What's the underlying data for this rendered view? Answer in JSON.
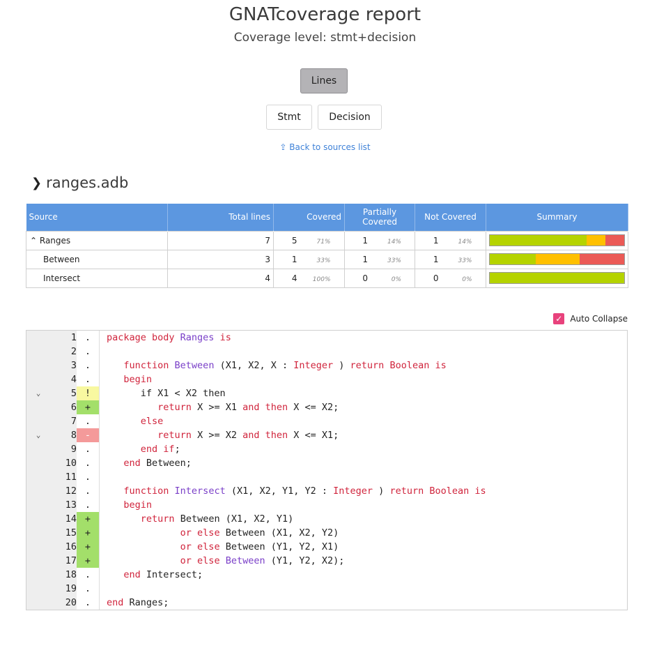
{
  "header": {
    "title": "GNATcoverage report",
    "subtitle": "Coverage level: stmt+decision"
  },
  "view_buttons": {
    "lines": "Lines",
    "stmt": "Stmt",
    "decision": "Decision"
  },
  "back_link": "⇪ Back to sources list",
  "file": {
    "chevron": "❯",
    "name": "ranges.adb"
  },
  "table": {
    "headers": [
      "Source",
      "Total lines",
      "Covered",
      "Partially Covered",
      "Not Covered",
      "Summary"
    ],
    "rows": [
      {
        "source": "⌃ Ranges",
        "total": "7",
        "covered": "5",
        "covered_pct": "71%",
        "partial": "1",
        "partial_pct": "14%",
        "not": "1",
        "not_pct": "14%",
        "summary": [
          0.72,
          0.14,
          0.14
        ]
      },
      {
        "source": "Between",
        "total": "3",
        "covered": "1",
        "covered_pct": "33%",
        "partial": "1",
        "partial_pct": "33%",
        "not": "1",
        "not_pct": "33%",
        "summary": [
          0.34,
          0.33,
          0.33
        ]
      },
      {
        "source": "Intersect",
        "total": "4",
        "covered": "4",
        "covered_pct": "100%",
        "partial": "0",
        "partial_pct": "0%",
        "not": "0",
        "not_pct": "0%",
        "summary": [
          1.0,
          0.0,
          0.0
        ]
      }
    ]
  },
  "auto_collapse": {
    "label": "Auto Collapse",
    "checked": true
  },
  "colors": {
    "covered": "#b5d300",
    "partial": "#ffc000",
    "not_covered": "#eb5a56",
    "header_blue": "#5c97e0",
    "checkbox": "#e8427c"
  },
  "code": {
    "lines": [
      {
        "n": "1",
        "fold": "",
        "mark": ".",
        "state": "none",
        "tokens": [
          [
            "kw",
            "package body "
          ],
          [
            "ty",
            "Ranges"
          ],
          [
            "kw",
            " is"
          ]
        ]
      },
      {
        "n": "2",
        "fold": "",
        "mark": ".",
        "state": "none",
        "tokens": []
      },
      {
        "n": "3",
        "fold": "",
        "mark": ".",
        "state": "none",
        "tokens": [
          [
            "",
            "   "
          ],
          [
            "kw",
            "function "
          ],
          [
            "ty",
            "Between"
          ],
          [
            "",
            " (X1, X2, X : "
          ],
          [
            "kw",
            "Integer"
          ],
          [
            "",
            " ) "
          ],
          [
            "kw",
            "return Boolean is"
          ]
        ]
      },
      {
        "n": "4",
        "fold": "",
        "mark": ".",
        "state": "none",
        "tokens": [
          [
            "",
            "   "
          ],
          [
            "kw",
            "begin"
          ]
        ]
      },
      {
        "n": "5",
        "fold": "⌄",
        "mark": "!",
        "state": "partial",
        "tokens": [
          [
            "",
            "      if X1 < X2 then"
          ]
        ]
      },
      {
        "n": "6",
        "fold": "",
        "mark": "+",
        "state": "covered",
        "tokens": [
          [
            "",
            "         "
          ],
          [
            "kw",
            "return"
          ],
          [
            "",
            " X >= X1 "
          ],
          [
            "kw",
            "and then"
          ],
          [
            "",
            " X <= X2;"
          ]
        ]
      },
      {
        "n": "7",
        "fold": "",
        "mark": ".",
        "state": "none",
        "tokens": [
          [
            "",
            "      "
          ],
          [
            "kw",
            "else"
          ]
        ]
      },
      {
        "n": "8",
        "fold": "⌄",
        "mark": "-",
        "state": "uncovered",
        "tokens": [
          [
            "",
            "         "
          ],
          [
            "kw",
            "return"
          ],
          [
            "",
            " X >= X2 "
          ],
          [
            "kw",
            "and then"
          ],
          [
            "",
            " X <= X1;"
          ]
        ]
      },
      {
        "n": "9",
        "fold": "",
        "mark": ".",
        "state": "none",
        "tokens": [
          [
            "",
            "      "
          ],
          [
            "kw",
            "end if"
          ],
          [
            "",
            ";"
          ]
        ]
      },
      {
        "n": "10",
        "fold": "",
        "mark": ".",
        "state": "none",
        "tokens": [
          [
            "",
            "   "
          ],
          [
            "kw",
            "end"
          ],
          [
            "",
            " Between;"
          ]
        ]
      },
      {
        "n": "11",
        "fold": "",
        "mark": ".",
        "state": "none",
        "tokens": []
      },
      {
        "n": "12",
        "fold": "",
        "mark": ".",
        "state": "none",
        "tokens": [
          [
            "",
            "   "
          ],
          [
            "kw",
            "function "
          ],
          [
            "ty",
            "Intersect"
          ],
          [
            "",
            " (X1, X2, Y1, Y2 : "
          ],
          [
            "kw",
            "Integer"
          ],
          [
            "",
            " ) "
          ],
          [
            "kw",
            "return Boolean is"
          ]
        ]
      },
      {
        "n": "13",
        "fold": "",
        "mark": ".",
        "state": "none",
        "tokens": [
          [
            "",
            "   "
          ],
          [
            "kw",
            "begin"
          ]
        ]
      },
      {
        "n": "14",
        "fold": "",
        "mark": "+",
        "state": "covered",
        "tokens": [
          [
            "",
            "      "
          ],
          [
            "kw",
            "return"
          ],
          [
            "",
            " Between (X1, X2, Y1)"
          ]
        ]
      },
      {
        "n": "15",
        "fold": "",
        "mark": "+",
        "state": "covered",
        "tokens": [
          [
            "",
            "             "
          ],
          [
            "kw",
            "or else"
          ],
          [
            "",
            " Between (X1, X2, Y2)"
          ]
        ]
      },
      {
        "n": "16",
        "fold": "",
        "mark": "+",
        "state": "covered",
        "tokens": [
          [
            "",
            "             "
          ],
          [
            "kw",
            "or else"
          ],
          [
            "",
            " Between (Y1, Y2, X1)"
          ]
        ]
      },
      {
        "n": "17",
        "fold": "",
        "mark": "+",
        "state": "covered",
        "tokens": [
          [
            "",
            "             "
          ],
          [
            "kw",
            "or else "
          ],
          [
            "ty",
            "Between"
          ],
          [
            "",
            " (Y1, Y2, X2);"
          ]
        ]
      },
      {
        "n": "18",
        "fold": "",
        "mark": ".",
        "state": "none",
        "tokens": [
          [
            "",
            "   "
          ],
          [
            "kw",
            "end"
          ],
          [
            "",
            " Intersect;"
          ]
        ]
      },
      {
        "n": "19",
        "fold": "",
        "mark": ".",
        "state": "none",
        "tokens": []
      },
      {
        "n": "20",
        "fold": "",
        "mark": ".",
        "state": "none",
        "tokens": [
          [
            "kw",
            "end"
          ],
          [
            "",
            " Ranges;"
          ]
        ]
      }
    ]
  }
}
